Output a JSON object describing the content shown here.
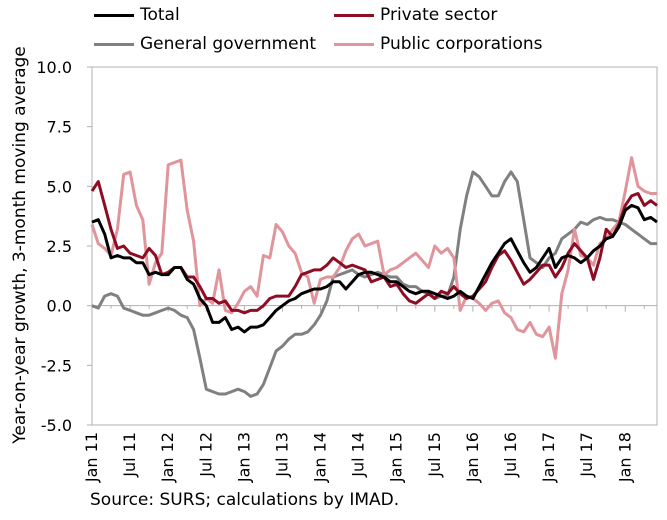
{
  "chart_data": {
    "type": "line",
    "title": "",
    "ylabel": "Year-on-year growth, 3-month moving average",
    "ylim": [
      -5,
      10
    ],
    "yticks": [
      "10.0",
      "7.5",
      "5.0",
      "2.5",
      "0.0",
      "-2.5",
      "-5.0"
    ],
    "ytick_values": [
      10,
      7.5,
      5,
      2.5,
      0,
      -2.5,
      -5
    ],
    "xtick_labels": [
      "Jan 11",
      "Jul 11",
      "Jan 12",
      "Jul 12",
      "Jan 13",
      "Jul 13",
      "Jan 14",
      "Jul 14",
      "Jan 15",
      "Jul 15",
      "Jan 16",
      "Jul 16",
      "Jan 17",
      "Jul 17",
      "Jan 18"
    ],
    "x_start": "Jan 2011",
    "grid": false,
    "legend_position": "top",
    "source": "Source: SURS; calculations by IMAD.",
    "series": [
      {
        "name": "Total",
        "color": "#000000",
        "values": [
          3.5,
          3.6,
          3.0,
          2.0,
          2.1,
          2.0,
          2.0,
          1.8,
          1.8,
          1.3,
          1.4,
          1.3,
          1.3,
          1.6,
          1.6,
          1.1,
          0.9,
          0.3,
          0.0,
          -0.7,
          -0.7,
          -0.5,
          -1.0,
          -0.9,
          -1.1,
          -0.9,
          -0.9,
          -0.8,
          -0.5,
          -0.2,
          0.0,
          0.2,
          0.3,
          0.5,
          0.6,
          0.7,
          0.7,
          0.8,
          1.0,
          1.0,
          0.7,
          1.0,
          1.3,
          1.4,
          1.4,
          1.3,
          1.2,
          1.0,
          1.0,
          0.8,
          0.6,
          0.5,
          0.6,
          0.6,
          0.5,
          0.4,
          0.3,
          0.4,
          0.6,
          0.4,
          0.3,
          0.8,
          1.3,
          1.8,
          2.2,
          2.6,
          2.8,
          2.3,
          1.8,
          1.4,
          1.6,
          2.0,
          2.4,
          1.6,
          2.0,
          2.1,
          2.0,
          1.8,
          2.0,
          2.3,
          2.5,
          2.8,
          2.9,
          3.3,
          4.0,
          4.2,
          4.1,
          3.6,
          3.7,
          3.5
        ]
      },
      {
        "name": "Private sector",
        "color": "#8e0d24",
        "values": [
          4.8,
          5.2,
          4.2,
          3.2,
          2.4,
          2.5,
          2.2,
          2.1,
          2.0,
          2.4,
          2.1,
          1.3,
          1.4,
          1.6,
          1.6,
          1.2,
          1.2,
          0.8,
          0.3,
          0.3,
          0.1,
          0.2,
          -0.2,
          -0.2,
          -0.3,
          -0.2,
          -0.2,
          0.0,
          0.3,
          0.4,
          0.4,
          0.4,
          0.8,
          1.3,
          1.4,
          1.5,
          1.5,
          1.7,
          2.0,
          1.8,
          1.6,
          1.7,
          1.6,
          1.5,
          1.0,
          1.1,
          1.2,
          0.8,
          0.9,
          0.5,
          0.2,
          0.1,
          0.3,
          0.5,
          0.3,
          0.6,
          0.5,
          0.8,
          0.5,
          0.3,
          0.4,
          0.7,
          1.0,
          1.6,
          2.1,
          2.3,
          1.9,
          1.4,
          0.9,
          1.1,
          1.4,
          1.7,
          1.7,
          1.2,
          1.6,
          2.2,
          2.6,
          2.3,
          2.0,
          1.1,
          2.0,
          3.2,
          2.9,
          3.4,
          4.2,
          4.6,
          4.7,
          4.2,
          4.4,
          4.2
        ]
      },
      {
        "name": "General government",
        "color": "#808080",
        "values": [
          0.0,
          -0.1,
          0.4,
          0.5,
          0.4,
          -0.1,
          -0.2,
          -0.3,
          -0.4,
          -0.4,
          -0.3,
          -0.2,
          -0.1,
          -0.2,
          -0.4,
          -0.5,
          -1.0,
          -2.2,
          -3.5,
          -3.6,
          -3.7,
          -3.7,
          -3.6,
          -3.5,
          -3.6,
          -3.8,
          -3.7,
          -3.3,
          -2.6,
          -1.9,
          -1.7,
          -1.4,
          -1.2,
          -1.2,
          -1.1,
          -0.8,
          -0.4,
          0.2,
          1.2,
          1.3,
          1.4,
          1.5,
          1.3,
          1.2,
          1.3,
          1.4,
          1.3,
          1.2,
          1.2,
          0.9,
          0.8,
          0.8,
          0.6,
          0.5,
          0.3,
          0.4,
          0.4,
          1.2,
          3.2,
          4.6,
          5.6,
          5.4,
          5.0,
          4.6,
          4.6,
          5.2,
          5.6,
          5.2,
          3.6,
          2.0,
          1.8,
          1.6,
          2.0,
          2.2,
          2.8,
          3.0,
          3.2,
          3.5,
          3.4,
          3.6,
          3.7,
          3.6,
          3.6,
          3.5,
          3.4,
          3.2,
          3.0,
          2.8,
          2.6,
          2.6
        ]
      },
      {
        "name": "Public corporations",
        "color": "#e0949b",
        "values": [
          3.4,
          2.6,
          2.4,
          2.1,
          3.2,
          5.5,
          5.6,
          4.2,
          3.6,
          0.9,
          1.8,
          2.2,
          5.9,
          6.0,
          6.1,
          4.0,
          2.7,
          0.0,
          0.3,
          0.1,
          1.5,
          -0.2,
          -0.3,
          0.1,
          0.6,
          0.8,
          0.4,
          2.1,
          2.0,
          3.4,
          3.1,
          2.5,
          2.2,
          1.4,
          1.2,
          0.1,
          1.1,
          1.2,
          1.2,
          1.6,
          2.3,
          2.8,
          3.0,
          2.5,
          2.6,
          2.7,
          1.3,
          1.5,
          1.6,
          1.8,
          2.0,
          2.2,
          1.9,
          1.6,
          2.5,
          2.2,
          2.4,
          2.0,
          -0.2,
          0.4,
          0.3,
          0.1,
          -0.2,
          0.1,
          0.2,
          -0.3,
          -0.5,
          -1.0,
          -1.1,
          -0.7,
          -1.2,
          -1.3,
          -0.9,
          -2.2,
          0.5,
          1.5,
          3.2,
          2.1,
          2.0,
          1.7,
          2.6,
          2.8,
          3.2,
          3.5,
          4.8,
          6.2,
          5.0,
          4.8,
          4.7,
          4.7
        ]
      }
    ]
  }
}
